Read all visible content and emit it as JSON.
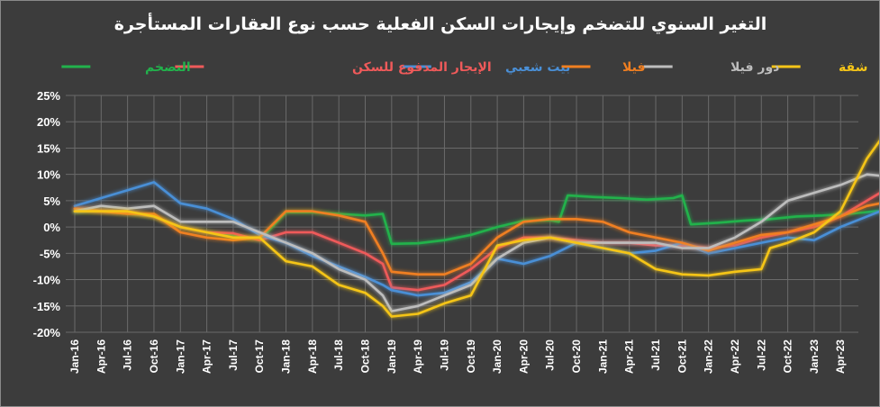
{
  "chart_data": {
    "type": "line",
    "title": "التغير السنوي للتضخم وإيجارات السكن الفعلية حسب نوع العقارات المستأجرة",
    "xlabel": "",
    "ylabel": "",
    "ylim": [
      -0.2,
      0.25
    ],
    "yticks": [
      "25%",
      "20%",
      "15%",
      "10%",
      "5%",
      "0%",
      "-5%",
      "-10%",
      "-15%",
      "-20%"
    ],
    "grid": true,
    "legend_position": "top",
    "x_tick_labels": [
      "Jan-16",
      "Apr-16",
      "Jul-16",
      "Oct-16",
      "Jan-17",
      "Apr-17",
      "Jul-17",
      "Oct-17",
      "Jan-18",
      "Apr-18",
      "Jul-18",
      "Oct-18",
      "Jan-19",
      "Apr-19",
      "Jul-19",
      "Oct-19",
      "Jan-20",
      "Apr-20",
      "Jul-20",
      "Oct-20",
      "Jan-21",
      "Apr-21",
      "Jul-21",
      "Oct-21",
      "Jan-22",
      "Apr-22",
      "Jul-22",
      "Oct-22",
      "Jan-23",
      "Apr-23"
    ],
    "x_start": "Jan-16",
    "x_frequency": "monthly",
    "series": [
      {
        "name": "التضخم",
        "color": "#22b24c",
        "values": [
          [
            0,
            0.03
          ],
          [
            3,
            0.03
          ],
          [
            6,
            0.025
          ],
          [
            9,
            0.02
          ],
          [
            12,
            0.0
          ],
          [
            15,
            -0.01
          ],
          [
            18,
            -0.015
          ],
          [
            21,
            -0.025
          ],
          [
            24,
            0.028
          ],
          [
            27,
            0.028
          ],
          [
            30,
            0.025
          ],
          [
            33,
            0.022
          ],
          [
            35,
            0.025
          ],
          [
            36,
            -0.032
          ],
          [
            39,
            -0.031
          ],
          [
            42,
            -0.025
          ],
          [
            45,
            -0.015
          ],
          [
            48,
            0.0
          ],
          [
            51,
            0.012
          ],
          [
            54,
            0.013
          ],
          [
            55,
            0.01
          ],
          [
            56,
            0.06
          ],
          [
            59,
            0.057
          ],
          [
            62,
            0.055
          ],
          [
            65,
            0.052
          ],
          [
            68,
            0.055
          ],
          [
            69,
            0.06
          ],
          [
            70,
            0.005
          ],
          [
            73,
            0.008
          ],
          [
            76,
            0.012
          ],
          [
            79,
            0.015
          ],
          [
            82,
            0.02
          ],
          [
            85,
            0.022
          ],
          [
            88,
            0.025
          ],
          [
            91,
            0.03
          ],
          [
            94,
            0.028
          ],
          [
            96,
            0.028
          ]
        ]
      },
      {
        "name": "الإيجار المدفوع للسكن",
        "color": "#ef5a5a",
        "values": [
          [
            0,
            0.035
          ],
          [
            3,
            0.03
          ],
          [
            6,
            0.028
          ],
          [
            9,
            0.02
          ],
          [
            12,
            0.0
          ],
          [
            15,
            -0.01
          ],
          [
            18,
            -0.012
          ],
          [
            21,
            -0.025
          ],
          [
            24,
            -0.01
          ],
          [
            27,
            -0.01
          ],
          [
            30,
            -0.03
          ],
          [
            33,
            -0.05
          ],
          [
            35,
            -0.07
          ],
          [
            36,
            -0.115
          ],
          [
            39,
            -0.12
          ],
          [
            42,
            -0.11
          ],
          [
            45,
            -0.08
          ],
          [
            48,
            -0.04
          ],
          [
            51,
            -0.02
          ],
          [
            54,
            -0.02
          ],
          [
            57,
            -0.025
          ],
          [
            60,
            -0.03
          ],
          [
            63,
            -0.03
          ],
          [
            66,
            -0.035
          ],
          [
            69,
            -0.035
          ],
          [
            72,
            -0.04
          ],
          [
            75,
            -0.035
          ],
          [
            78,
            -0.02
          ],
          [
            81,
            -0.01
          ],
          [
            84,
            0.0
          ],
          [
            87,
            0.02
          ],
          [
            90,
            0.05
          ],
          [
            93,
            0.08
          ],
          [
            96,
            0.095
          ]
        ]
      },
      {
        "name": "بيت شعبي",
        "color": "#4a8fd6",
        "values": [
          [
            0,
            0.04
          ],
          [
            3,
            0.055
          ],
          [
            6,
            0.07
          ],
          [
            9,
            0.085
          ],
          [
            12,
            0.045
          ],
          [
            15,
            0.035
          ],
          [
            18,
            0.015
          ],
          [
            21,
            -0.015
          ],
          [
            24,
            -0.03
          ],
          [
            27,
            -0.055
          ],
          [
            30,
            -0.075
          ],
          [
            33,
            -0.095
          ],
          [
            35,
            -0.11
          ],
          [
            36,
            -0.12
          ],
          [
            39,
            -0.13
          ],
          [
            42,
            -0.125
          ],
          [
            45,
            -0.105
          ],
          [
            48,
            -0.06
          ],
          [
            51,
            -0.07
          ],
          [
            54,
            -0.055
          ],
          [
            57,
            -0.03
          ],
          [
            60,
            -0.04
          ],
          [
            63,
            -0.05
          ],
          [
            66,
            -0.045
          ],
          [
            69,
            -0.03
          ],
          [
            72,
            -0.05
          ],
          [
            75,
            -0.04
          ],
          [
            78,
            -0.03
          ],
          [
            81,
            -0.02
          ],
          [
            84,
            -0.025
          ],
          [
            87,
            0.0
          ],
          [
            90,
            0.02
          ],
          [
            93,
            0.04
          ],
          [
            96,
            0.085
          ]
        ]
      },
      {
        "name": "فيلا",
        "color": "#f07f21",
        "values": [
          [
            0,
            0.035
          ],
          [
            3,
            0.03
          ],
          [
            6,
            0.025
          ],
          [
            9,
            0.025
          ],
          [
            12,
            -0.01
          ],
          [
            15,
            -0.02
          ],
          [
            18,
            -0.025
          ],
          [
            21,
            -0.02
          ],
          [
            24,
            0.03
          ],
          [
            27,
            0.03
          ],
          [
            30,
            0.022
          ],
          [
            33,
            0.01
          ],
          [
            35,
            -0.05
          ],
          [
            36,
            -0.085
          ],
          [
            39,
            -0.09
          ],
          [
            42,
            -0.09
          ],
          [
            45,
            -0.07
          ],
          [
            48,
            -0.02
          ],
          [
            51,
            0.01
          ],
          [
            54,
            0.015
          ],
          [
            57,
            0.015
          ],
          [
            60,
            0.01
          ],
          [
            63,
            -0.01
          ],
          [
            66,
            -0.02
          ],
          [
            69,
            -0.03
          ],
          [
            72,
            -0.045
          ],
          [
            75,
            -0.03
          ],
          [
            78,
            -0.015
          ],
          [
            81,
            -0.01
          ],
          [
            84,
            0.005
          ],
          [
            87,
            0.02
          ],
          [
            90,
            0.04
          ],
          [
            93,
            0.05
          ],
          [
            96,
            0.067
          ]
        ]
      },
      {
        "name": "دور فيلا",
        "color": "#bdbdbd",
        "values": [
          [
            0,
            0.03
          ],
          [
            3,
            0.04
          ],
          [
            6,
            0.035
          ],
          [
            9,
            0.04
          ],
          [
            12,
            0.01
          ],
          [
            15,
            0.01
          ],
          [
            18,
            0.01
          ],
          [
            21,
            -0.01
          ],
          [
            24,
            -0.03
          ],
          [
            27,
            -0.05
          ],
          [
            30,
            -0.08
          ],
          [
            33,
            -0.1
          ],
          [
            35,
            -0.13
          ],
          [
            36,
            -0.16
          ],
          [
            39,
            -0.15
          ],
          [
            42,
            -0.13
          ],
          [
            45,
            -0.11
          ],
          [
            48,
            -0.06
          ],
          [
            51,
            -0.03
          ],
          [
            54,
            -0.02
          ],
          [
            57,
            -0.03
          ],
          [
            60,
            -0.03
          ],
          [
            63,
            -0.03
          ],
          [
            66,
            -0.03
          ],
          [
            69,
            -0.04
          ],
          [
            72,
            -0.04
          ],
          [
            75,
            -0.02
          ],
          [
            78,
            0.01
          ],
          [
            81,
            0.05
          ],
          [
            84,
            0.065
          ],
          [
            87,
            0.08
          ],
          [
            90,
            0.1
          ],
          [
            93,
            0.095
          ],
          [
            96,
            0.098
          ]
        ]
      },
      {
        "name": "شقة",
        "color": "#f5c518",
        "values": [
          [
            0,
            0.03
          ],
          [
            3,
            0.03
          ],
          [
            6,
            0.03
          ],
          [
            9,
            0.02
          ],
          [
            12,
            0.0
          ],
          [
            15,
            -0.01
          ],
          [
            18,
            -0.02
          ],
          [
            21,
            -0.02
          ],
          [
            24,
            -0.065
          ],
          [
            27,
            -0.075
          ],
          [
            30,
            -0.11
          ],
          [
            33,
            -0.125
          ],
          [
            35,
            -0.15
          ],
          [
            36,
            -0.17
          ],
          [
            39,
            -0.165
          ],
          [
            42,
            -0.145
          ],
          [
            45,
            -0.13
          ],
          [
            48,
            -0.035
          ],
          [
            51,
            -0.025
          ],
          [
            54,
            -0.02
          ],
          [
            57,
            -0.03
          ],
          [
            60,
            -0.04
          ],
          [
            63,
            -0.05
          ],
          [
            66,
            -0.08
          ],
          [
            69,
            -0.09
          ],
          [
            72,
            -0.092
          ],
          [
            75,
            -0.085
          ],
          [
            78,
            -0.08
          ],
          [
            79,
            -0.04
          ],
          [
            81,
            -0.03
          ],
          [
            84,
            -0.01
          ],
          [
            87,
            0.03
          ],
          [
            90,
            0.13
          ],
          [
            93,
            0.2
          ],
          [
            96,
            0.237
          ]
        ]
      }
    ]
  },
  "legend_order_rtl": [
    5,
    4,
    3,
    2,
    1,
    0
  ]
}
